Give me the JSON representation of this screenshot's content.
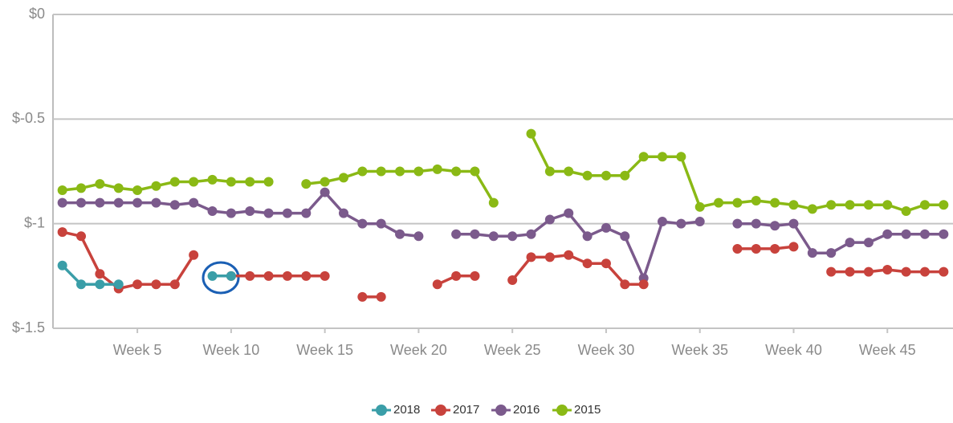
{
  "chart_data": {
    "type": "line",
    "categories": [
      null,
      null,
      null,
      null,
      "Week 5",
      null,
      null,
      null,
      null,
      "Week 10",
      null,
      null,
      null,
      null,
      "Week 15",
      null,
      null,
      null,
      null,
      "Week 20",
      null,
      null,
      null,
      null,
      "Week 25",
      null,
      null,
      null,
      null,
      "Week 30",
      null,
      null,
      null,
      null,
      "Week 35",
      null,
      null,
      null,
      null,
      "Week 40",
      null,
      null,
      null,
      null,
      "Week 45",
      null,
      null,
      null
    ],
    "ylim": [
      -1.5,
      0
    ],
    "yticks": [
      {
        "value": 0,
        "label": "$0"
      },
      {
        "value": -0.5,
        "label": "$-0.5"
      },
      {
        "value": -1,
        "label": "$-1"
      },
      {
        "value": -1.5,
        "label": "$-1.5"
      }
    ],
    "grid": true,
    "series": [
      {
        "name": "2018",
        "color": "#3a9ea8",
        "values": [
          -1.2,
          -1.29,
          -1.29,
          -1.29,
          null,
          null,
          null,
          null,
          -1.25,
          -1.25,
          null,
          null,
          null,
          null,
          null,
          null,
          null,
          null,
          null,
          null,
          null,
          null,
          null,
          null,
          null,
          null,
          null,
          null,
          null,
          null,
          null,
          null,
          null,
          null,
          null,
          null,
          null,
          null,
          null,
          null,
          null,
          null,
          null,
          null,
          null,
          null,
          null,
          null
        ]
      },
      {
        "name": "2017",
        "color": "#c8423c",
        "values": [
          -1.04,
          -1.06,
          -1.24,
          -1.31,
          -1.29,
          -1.29,
          -1.29,
          -1.15,
          null,
          -1.25,
          -1.25,
          -1.25,
          -1.25,
          -1.25,
          -1.25,
          null,
          -1.35,
          -1.35,
          null,
          null,
          -1.29,
          -1.25,
          -1.25,
          null,
          -1.27,
          -1.16,
          -1.16,
          -1.15,
          -1.19,
          -1.19,
          -1.29,
          -1.29,
          null,
          null,
          null,
          null,
          -1.12,
          -1.12,
          -1.12,
          -1.11,
          null,
          -1.23,
          -1.23,
          -1.23,
          -1.22,
          -1.23,
          -1.23,
          -1.23
        ]
      },
      {
        "name": "2016",
        "color": "#7b5a8c",
        "values": [
          -0.9,
          -0.9,
          -0.9,
          -0.9,
          -0.9,
          -0.9,
          -0.91,
          -0.9,
          -0.94,
          -0.95,
          -0.94,
          -0.95,
          -0.95,
          -0.95,
          -0.85,
          -0.95,
          -1.0,
          -1.0,
          -1.05,
          -1.06,
          null,
          -1.05,
          -1.05,
          -1.06,
          -1.06,
          -1.05,
          -0.98,
          -0.95,
          -1.06,
          -1.02,
          -1.06,
          -1.26,
          -0.99,
          -1.0,
          -0.99,
          null,
          -1.0,
          -1.0,
          -1.01,
          -1.0,
          -1.14,
          -1.14,
          -1.09,
          -1.09,
          -1.05,
          -1.05,
          -1.05,
          -1.05
        ]
      },
      {
        "name": "2015",
        "color": "#8ab915",
        "values": [
          -0.84,
          -0.83,
          -0.81,
          -0.83,
          -0.84,
          -0.82,
          -0.8,
          -0.8,
          -0.79,
          -0.8,
          -0.8,
          -0.8,
          null,
          -0.81,
          -0.8,
          -0.78,
          -0.75,
          -0.75,
          -0.75,
          -0.75,
          -0.74,
          -0.75,
          -0.75,
          -0.9,
          null,
          -0.57,
          -0.75,
          -0.75,
          -0.77,
          -0.77,
          -0.77,
          -0.68,
          -0.68,
          -0.68,
          -0.92,
          -0.9,
          -0.9,
          -0.89,
          -0.9,
          -0.91,
          -0.93,
          -0.91,
          -0.91,
          -0.91,
          -0.91,
          -0.94,
          -0.91,
          -0.91
        ]
      }
    ]
  }
}
